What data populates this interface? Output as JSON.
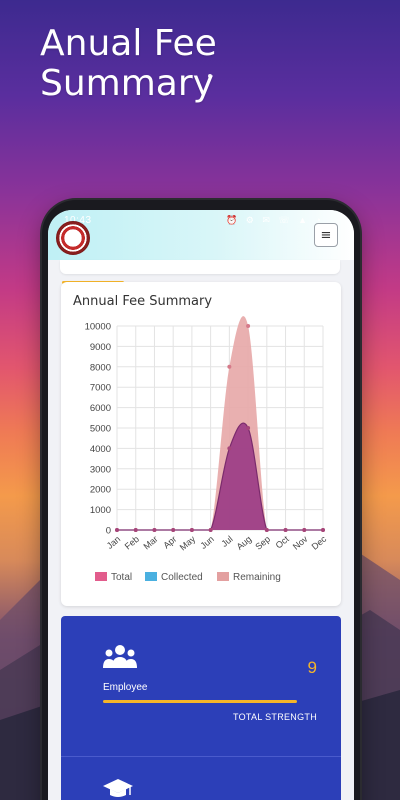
{
  "hero": {
    "title_line1": "Anual Fee",
    "title_line2": "Summary"
  },
  "status_bar": {
    "time": "10:43",
    "icons": "⏰ ⚙ ✉ ☏ ▲ ◔"
  },
  "app_bar": {
    "logo": "school-logo",
    "menu_icon": "≡"
  },
  "chart_card": {
    "title": "Annual Fee Summary",
    "chart_data": {
      "type": "area",
      "categories": [
        "Jan",
        "Feb",
        "Mar",
        "Apr",
        "May",
        "Jun",
        "Jul",
        "Aug",
        "Sep",
        "Oct",
        "Nov",
        "Dec"
      ],
      "ylim": [
        0,
        10000
      ],
      "yticks": [
        "10000",
        "9000",
        "8000",
        "7000",
        "6000",
        "5000",
        "4000",
        "3000",
        "2000",
        "1000",
        "0"
      ],
      "grid": true,
      "legend_position": "bottom",
      "series": [
        {
          "name": "Total",
          "color": "#e25c8c",
          "values": [
            0,
            0,
            0,
            0,
            0,
            0,
            8000,
            10000,
            0,
            0,
            0,
            0
          ]
        },
        {
          "name": "Collected",
          "color": "#4ab0e0",
          "values": [
            0,
            0,
            0,
            0,
            0,
            0,
            4000,
            5000,
            0,
            0,
            0,
            0
          ]
        },
        {
          "name": "Remaining",
          "color": "#e3a0a0",
          "values": [
            0,
            0,
            0,
            0,
            0,
            0,
            4000,
            5000,
            0,
            0,
            0,
            0
          ]
        }
      ]
    }
  },
  "stats": {
    "employee": {
      "label": "Employee",
      "value": "9",
      "caption": "TOTAL STRENGTH",
      "icon": "users-icon"
    },
    "next_card": {
      "icon": "graduation-cap-icon"
    }
  }
}
